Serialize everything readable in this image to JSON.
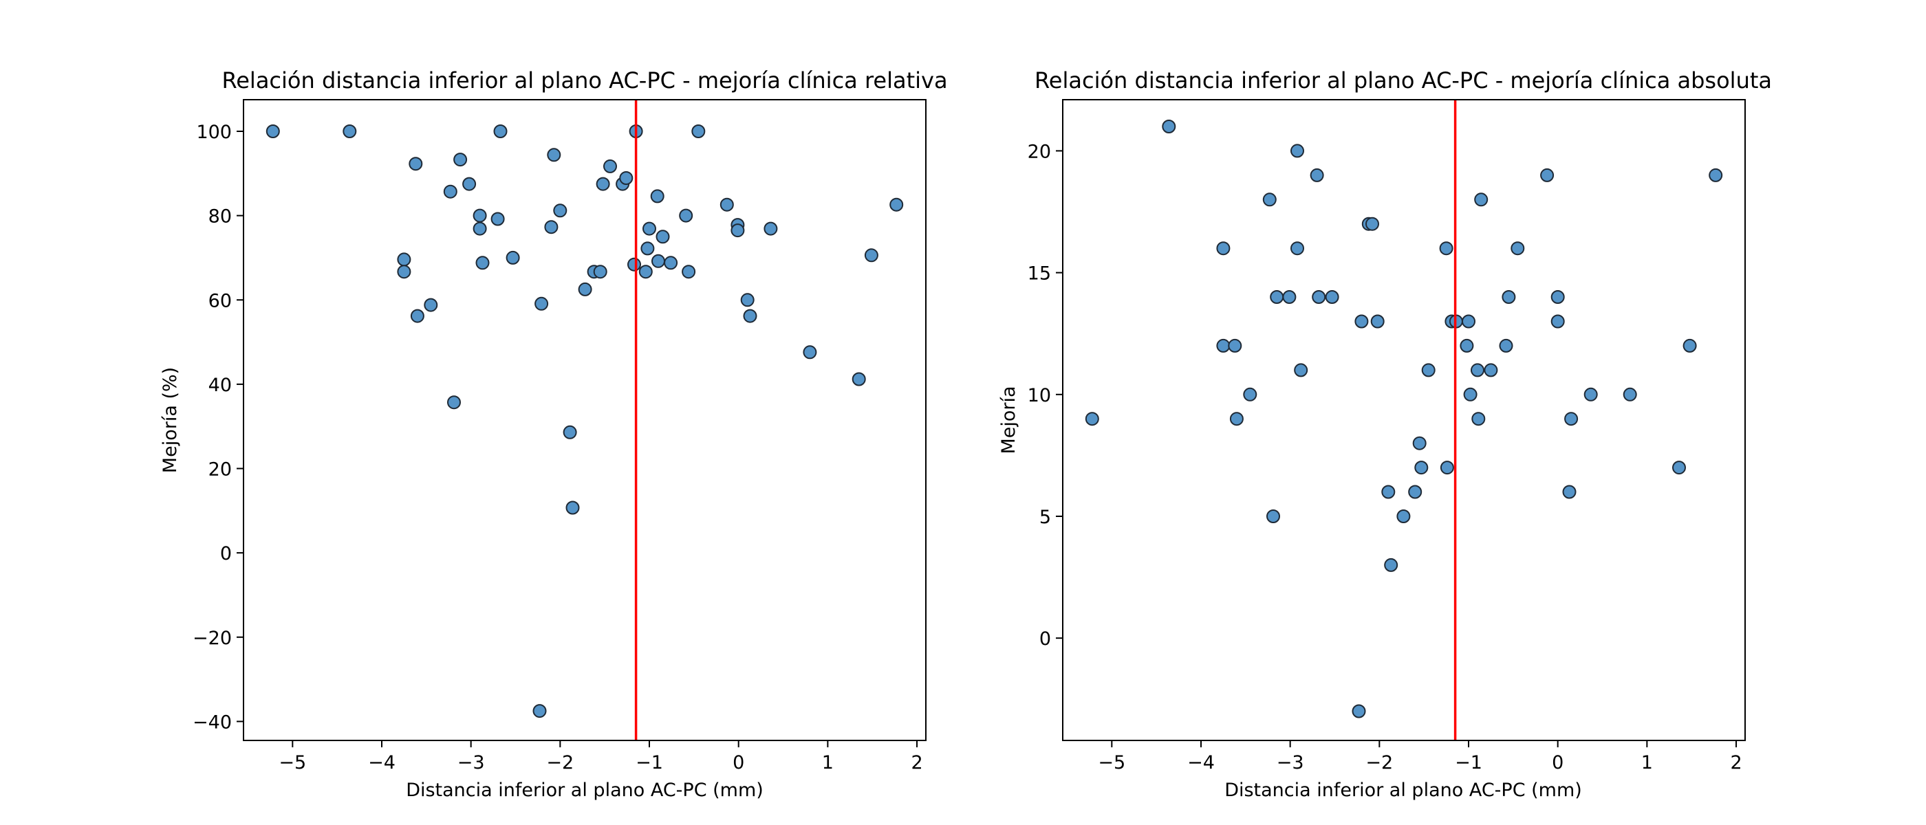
{
  "chart_data": [
    {
      "type": "scatter",
      "title": "Relación distancia inferior al plano AC-PC - mejoría clínica relativa",
      "xlabel": "Distancia inferior al plano AC-PC (mm)",
      "ylabel": "Mejoría (%)",
      "xlim": [
        -5.55,
        2.1
      ],
      "ylim": [
        -44.5,
        107.5
      ],
      "xticks": [
        -5,
        -4,
        -3,
        -2,
        -1,
        0,
        1,
        2
      ],
      "yticks": [
        -40,
        -20,
        0,
        20,
        40,
        60,
        80,
        100
      ],
      "xtick_labels": [
        "−5",
        "−4",
        "−3",
        "−2",
        "−1",
        "0",
        "1",
        "2"
      ],
      "ytick_labels": [
        "−40",
        "−20",
        "0",
        "20",
        "40",
        "60",
        "80",
        "100"
      ],
      "vline_x": -1.15,
      "colors": {
        "marker": "#5594c8",
        "edge": "#1f2a36",
        "vline": "#ff0000"
      },
      "grid": false,
      "points": [
        {
          "x": -5.22,
          "y": 100
        },
        {
          "x": -4.36,
          "y": 100
        },
        {
          "x": -3.62,
          "y": 92.3
        },
        {
          "x": -3.12,
          "y": 93.3
        },
        {
          "x": -2.67,
          "y": 100
        },
        {
          "x": -1.15,
          "y": 100
        },
        {
          "x": -0.45,
          "y": 100
        },
        {
          "x": -3.23,
          "y": 85.7
        },
        {
          "x": -3.02,
          "y": 87.5
        },
        {
          "x": -2.07,
          "y": 94.4
        },
        {
          "x": -1.44,
          "y": 91.7
        },
        {
          "x": -1.52,
          "y": 87.5
        },
        {
          "x": -1.3,
          "y": 87.5
        },
        {
          "x": -1.26,
          "y": 88.9
        },
        {
          "x": -0.91,
          "y": 84.6
        },
        {
          "x": -2.9,
          "y": 80
        },
        {
          "x": -2.7,
          "y": 79.2
        },
        {
          "x": -2.9,
          "y": 76.9
        },
        {
          "x": -2.0,
          "y": 81.2
        },
        {
          "x": -2.1,
          "y": 77.3
        },
        {
          "x": -1.0,
          "y": 76.9
        },
        {
          "x": -0.85,
          "y": 75
        },
        {
          "x": -0.59,
          "y": 80
        },
        {
          "x": -0.13,
          "y": 82.6
        },
        {
          "x": -0.01,
          "y": 77.8
        },
        {
          "x": -0.01,
          "y": 76.5
        },
        {
          "x": 0.36,
          "y": 76.9
        },
        {
          "x": 1.77,
          "y": 82.6
        },
        {
          "x": -3.75,
          "y": 69.6
        },
        {
          "x": -3.75,
          "y": 66.7
        },
        {
          "x": -2.87,
          "y": 68.8
        },
        {
          "x": -2.53,
          "y": 70
        },
        {
          "x": -1.62,
          "y": 66.7
        },
        {
          "x": -1.55,
          "y": 66.7
        },
        {
          "x": -1.72,
          "y": 62.5
        },
        {
          "x": -1.17,
          "y": 68.4
        },
        {
          "x": -1.04,
          "y": 66.7
        },
        {
          "x": -1.02,
          "y": 72.2
        },
        {
          "x": -0.9,
          "y": 69.2
        },
        {
          "x": -0.76,
          "y": 68.8
        },
        {
          "x": -0.56,
          "y": 66.7
        },
        {
          "x": -3.45,
          "y": 58.8
        },
        {
          "x": -3.6,
          "y": 56.2
        },
        {
          "x": -2.21,
          "y": 59.1
        },
        {
          "x": 0.1,
          "y": 60
        },
        {
          "x": 0.13,
          "y": 56.2
        },
        {
          "x": 1.49,
          "y": 70.6
        },
        {
          "x": 0.8,
          "y": 47.6
        },
        {
          "x": 1.35,
          "y": 41.2
        },
        {
          "x": -3.19,
          "y": 35.7
        },
        {
          "x": -1.89,
          "y": 28.6
        },
        {
          "x": -1.86,
          "y": 10.7
        },
        {
          "x": -2.23,
          "y": -37.5
        }
      ]
    },
    {
      "type": "scatter",
      "title": "Relación distancia inferior al plano AC-PC - mejoría clínica absoluta",
      "xlabel": "Distancia inferior al plano AC-PC (mm)",
      "ylabel": "Mejoría",
      "xlim": [
        -5.55,
        2.1
      ],
      "ylim": [
        -4.2,
        22.1
      ],
      "xticks": [
        -5,
        -4,
        -3,
        -2,
        -1,
        0,
        1,
        2
      ],
      "yticks": [
        0,
        5,
        10,
        15,
        20
      ],
      "xtick_labels": [
        "−5",
        "−4",
        "−3",
        "−2",
        "−1",
        "0",
        "1",
        "2"
      ],
      "ytick_labels": [
        "0",
        "5",
        "10",
        "15",
        "20"
      ],
      "vline_x": -1.15,
      "colors": {
        "marker": "#5594c8",
        "edge": "#1f2a36",
        "vline": "#ff0000"
      },
      "grid": false,
      "points": [
        {
          "x": -4.36,
          "y": 21
        },
        {
          "x": -2.92,
          "y": 20
        },
        {
          "x": -2.7,
          "y": 19
        },
        {
          "x": -0.12,
          "y": 19
        },
        {
          "x": 1.77,
          "y": 19
        },
        {
          "x": -3.23,
          "y": 18
        },
        {
          "x": -0.86,
          "y": 18
        },
        {
          "x": -2.12,
          "y": 17
        },
        {
          "x": -2.08,
          "y": 17
        },
        {
          "x": -3.75,
          "y": 16
        },
        {
          "x": -2.92,
          "y": 16
        },
        {
          "x": -1.25,
          "y": 16
        },
        {
          "x": -0.45,
          "y": 16
        },
        {
          "x": -3.15,
          "y": 14
        },
        {
          "x": -3.01,
          "y": 14
        },
        {
          "x": -2.68,
          "y": 14
        },
        {
          "x": -2.53,
          "y": 14
        },
        {
          "x": -0.55,
          "y": 14
        },
        {
          "x": 0.0,
          "y": 14
        },
        {
          "x": -2.2,
          "y": 13
        },
        {
          "x": -2.02,
          "y": 13
        },
        {
          "x": -1.19,
          "y": 13
        },
        {
          "x": -1.14,
          "y": 13
        },
        {
          "x": -1.0,
          "y": 13
        },
        {
          "x": 0.0,
          "y": 13
        },
        {
          "x": -3.75,
          "y": 12
        },
        {
          "x": -3.62,
          "y": 12
        },
        {
          "x": -1.02,
          "y": 12
        },
        {
          "x": -0.58,
          "y": 12
        },
        {
          "x": 1.48,
          "y": 12
        },
        {
          "x": -2.88,
          "y": 11
        },
        {
          "x": -1.45,
          "y": 11
        },
        {
          "x": -0.9,
          "y": 11
        },
        {
          "x": -0.75,
          "y": 11
        },
        {
          "x": -3.45,
          "y": 10
        },
        {
          "x": -0.98,
          "y": 10
        },
        {
          "x": 0.37,
          "y": 10
        },
        {
          "x": 0.81,
          "y": 10
        },
        {
          "x": -5.22,
          "y": 9
        },
        {
          "x": -3.6,
          "y": 9
        },
        {
          "x": -0.89,
          "y": 9
        },
        {
          "x": 0.15,
          "y": 9
        },
        {
          "x": -1.55,
          "y": 8
        },
        {
          "x": -1.53,
          "y": 7
        },
        {
          "x": -1.24,
          "y": 7
        },
        {
          "x": 1.36,
          "y": 7
        },
        {
          "x": -1.9,
          "y": 6
        },
        {
          "x": -1.6,
          "y": 6
        },
        {
          "x": 0.13,
          "y": 6
        },
        {
          "x": -3.19,
          "y": 5
        },
        {
          "x": -1.73,
          "y": 5
        },
        {
          "x": -1.87,
          "y": 3
        },
        {
          "x": -2.23,
          "y": -3
        }
      ]
    }
  ]
}
